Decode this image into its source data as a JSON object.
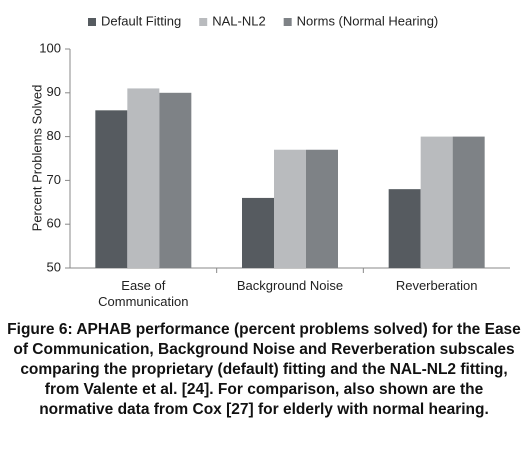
{
  "chart_data": {
    "type": "bar",
    "categories": [
      "Ease of Communication",
      "Background Noise",
      "Reverberation"
    ],
    "series": [
      {
        "name": "Default Fitting",
        "color": "#565b60",
        "values": [
          86,
          66,
          68
        ]
      },
      {
        "name": "NAL-NL2",
        "color": "#b9bbbe",
        "values": [
          91,
          77,
          80
        ]
      },
      {
        "name": "Norms (Normal Hearing)",
        "color": "#7e8286",
        "values": [
          90,
          77,
          80
        ]
      }
    ],
    "ylabel": "Percent Problems Solved",
    "ylim": [
      50,
      100
    ],
    "yticks": [
      50,
      60,
      70,
      80,
      90,
      100
    ],
    "grid": false,
    "legend": "top",
    "caption": "Figure 6: APHAB performance (percent problems solved) for the Ease of Communication, Background Noise and Reverberation subscales comparing the proprietary (default) fitting and the NAL-NL2 fitting, from Valente et al. [24]. For comparison, also shown are the normative data from Cox [27] for elderly with normal hearing."
  }
}
